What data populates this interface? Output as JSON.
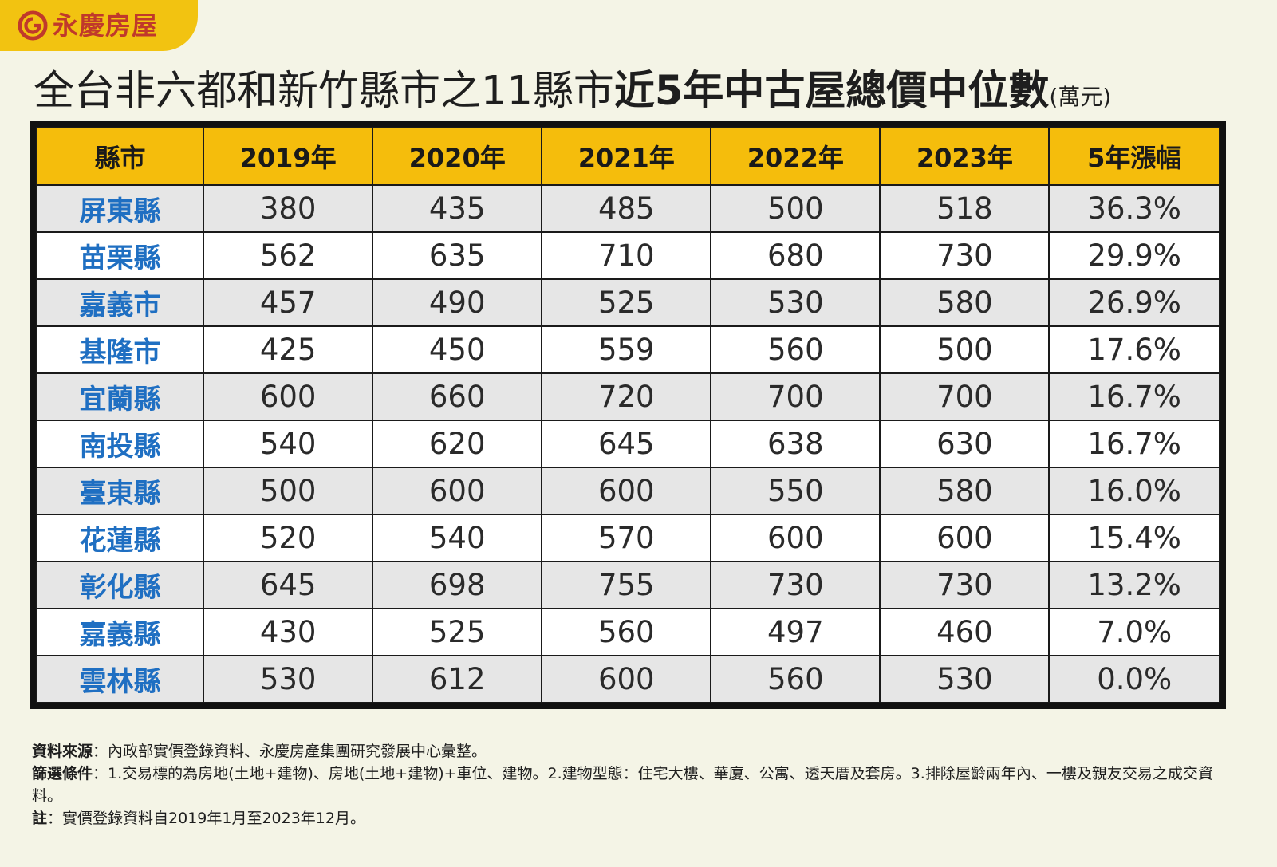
{
  "brand": {
    "name": "永慶房屋",
    "color": "#c0392b",
    "tab_color": "#f2c311"
  },
  "title": {
    "light": "全台非六都和新竹縣市之11縣市",
    "bold": "近5年中古屋總價中位數",
    "unit": "(萬元)"
  },
  "chart_data": {
    "type": "table",
    "title": "全台非六都和新竹縣市之11縣市近5年中古屋總價中位數",
    "unit": "萬元",
    "columns": [
      "縣市",
      "2019年",
      "2020年",
      "2021年",
      "2022年",
      "2023年",
      "5年漲幅"
    ],
    "rows": [
      [
        "屏東縣",
        "380",
        "435",
        "485",
        "500",
        "518",
        "36.3%"
      ],
      [
        "苗栗縣",
        "562",
        "635",
        "710",
        "680",
        "730",
        "29.9%"
      ],
      [
        "嘉義市",
        "457",
        "490",
        "525",
        "530",
        "580",
        "26.9%"
      ],
      [
        "基隆市",
        "425",
        "450",
        "559",
        "560",
        "500",
        "17.6%"
      ],
      [
        "宜蘭縣",
        "600",
        "660",
        "720",
        "700",
        "700",
        "16.7%"
      ],
      [
        "南投縣",
        "540",
        "620",
        "645",
        "638",
        "630",
        "16.7%"
      ],
      [
        "臺東縣",
        "500",
        "600",
        "600",
        "550",
        "580",
        "16.0%"
      ],
      [
        "花蓮縣",
        "520",
        "540",
        "570",
        "600",
        "600",
        "15.4%"
      ],
      [
        "彰化縣",
        "645",
        "698",
        "755",
        "730",
        "730",
        "13.2%"
      ],
      [
        "嘉義縣",
        "430",
        "525",
        "560",
        "497",
        "460",
        "7.0%"
      ],
      [
        "雲林縣",
        "530",
        "612",
        "600",
        "560",
        "530",
        "0.0%"
      ]
    ],
    "colors": {
      "header_bg": "#f5bd0c",
      "county_text": "#1f6fc2",
      "row_alt_bg": "#e6e6e6",
      "row_bg": "#ffffff"
    }
  },
  "notes": {
    "source_label": "資料來源",
    "source_text": "：內政部實價登錄資料、永慶房產集團研究發展中心彙整。",
    "filter_label": "篩選條件",
    "filter_text": "：1.交易標的為房地(土地+建物)、房地(土地+建物)+車位、建物。2.建物型態：住宅大樓、華廈、公寓、透天厝及套房。3.排除屋齡兩年內、一樓及親友交易之成交資料。",
    "note_label": "註",
    "note_text": "：實價登錄資料自2019年1月至2023年12月。"
  }
}
